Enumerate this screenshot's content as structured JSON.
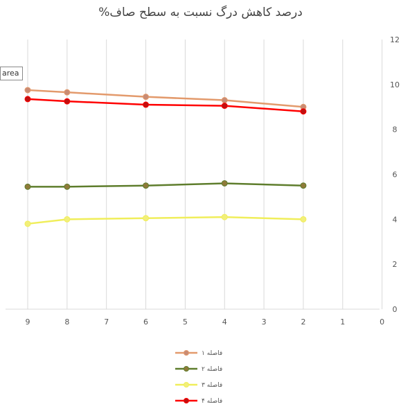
{
  "chart_data": {
    "type": "line",
    "title": "درصد کاهش درگ نسبت به سطح صاف%",
    "x_ticks": [
      9,
      8,
      7,
      6,
      5,
      4,
      3,
      2,
      1,
      0
    ],
    "y_ticks": [
      0,
      2,
      4,
      6,
      8,
      10,
      12
    ],
    "xlim": [
      9.5,
      0
    ],
    "ylim": [
      0,
      12
    ],
    "grid": "vertical",
    "legend_position": "bottom",
    "y_axis_side": "right",
    "x": [
      9,
      8,
      6,
      4,
      2
    ],
    "series": [
      {
        "name": "فاصله ۱",
        "color": "#e39a6c",
        "marker": "#c98b74",
        "values": [
          9.75,
          9.65,
          9.45,
          9.3,
          9.0
        ]
      },
      {
        "name": "فاصله ۲",
        "color": "#5e7d2c",
        "marker": "#8f7a3a",
        "values": [
          5.45,
          5.45,
          5.5,
          5.6,
          5.5
        ]
      },
      {
        "name": "فاصله ۳",
        "color": "#f0ee5a",
        "marker": "#f2ef7a",
        "values": [
          3.8,
          4.0,
          4.05,
          4.1,
          4.0
        ]
      },
      {
        "name": "فاصله ۴",
        "color": "#ff0000",
        "marker": "#c01010",
        "values": [
          9.35,
          9.25,
          9.1,
          9.05,
          8.8
        ]
      }
    ],
    "annotation": "area"
  }
}
